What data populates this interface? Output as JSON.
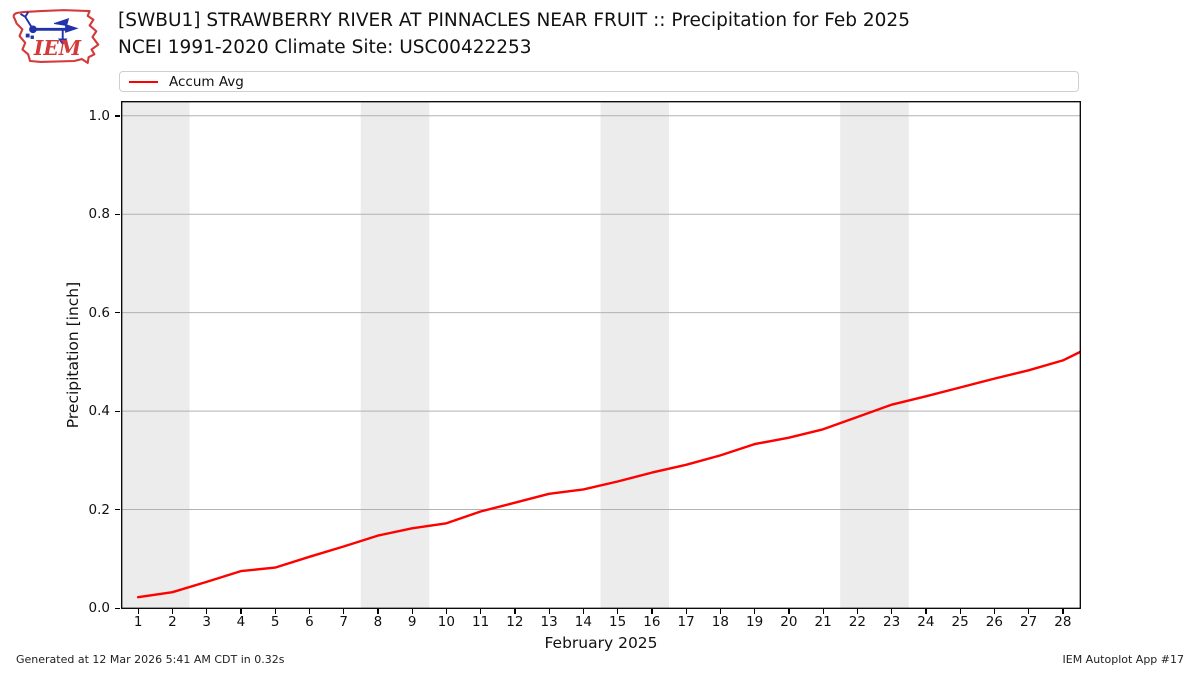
{
  "logo": {
    "text": "IEM"
  },
  "header": {
    "title": "[SWBU1] STRAWBERRY RIVER AT PINNACLES NEAR FRUIT :: Precipitation for Feb 2025",
    "subtitle": "NCEI 1991-2020 Climate Site: USC00422253"
  },
  "legend": {
    "label": "Accum Avg",
    "color": "#ff0000"
  },
  "footer": {
    "generated": "Generated at 12 Mar 2026 5:41 AM CDT in 0.32s",
    "app": "IEM Autoplot App #17"
  },
  "chart_data": {
    "type": "line",
    "title": "[SWBU1] STRAWBERRY RIVER AT PINNACLES NEAR FRUIT :: Precipitation for Feb 2025",
    "subtitle": "NCEI 1991-2020 Climate Site: USC00422253",
    "xlabel": "February 2025",
    "ylabel": "Precipitation [inch]",
    "xlim": [
      0.5,
      28.5
    ],
    "ylim": [
      0,
      1.03
    ],
    "xticks": [
      1,
      2,
      3,
      4,
      5,
      6,
      7,
      8,
      9,
      10,
      11,
      12,
      13,
      14,
      15,
      16,
      17,
      18,
      19,
      20,
      21,
      22,
      23,
      24,
      25,
      26,
      27,
      28
    ],
    "yticks": [
      0.0,
      0.2,
      0.4,
      0.6,
      0.8,
      1.0
    ],
    "grid": "horizontal gridlines only",
    "legend_position": "top",
    "weekend_bands": [
      [
        0.5,
        2.5
      ],
      [
        7.5,
        9.5
      ],
      [
        14.5,
        16.5
      ],
      [
        21.5,
        23.5
      ]
    ],
    "band_color": "#ececec",
    "grid_color": "#b2b2b2",
    "frame_color": "#000000",
    "series": [
      {
        "name": "Accum Avg",
        "color": "#ff0000",
        "x": [
          1,
          2,
          3,
          4,
          5,
          6,
          7,
          8,
          9,
          10,
          11,
          12,
          13,
          14,
          15,
          16,
          17,
          18,
          19,
          20,
          21,
          22,
          23,
          24,
          25,
          26,
          27,
          28,
          28.5
        ],
        "y": [
          0.022,
          0.032,
          0.053,
          0.075,
          0.082,
          0.104,
          0.125,
          0.147,
          0.162,
          0.172,
          0.196,
          0.214,
          0.232,
          0.241,
          0.257,
          0.275,
          0.291,
          0.31,
          0.333,
          0.346,
          0.363,
          0.388,
          0.413,
          0.43,
          0.448,
          0.466,
          0.483,
          0.503,
          0.52
        ]
      }
    ]
  }
}
